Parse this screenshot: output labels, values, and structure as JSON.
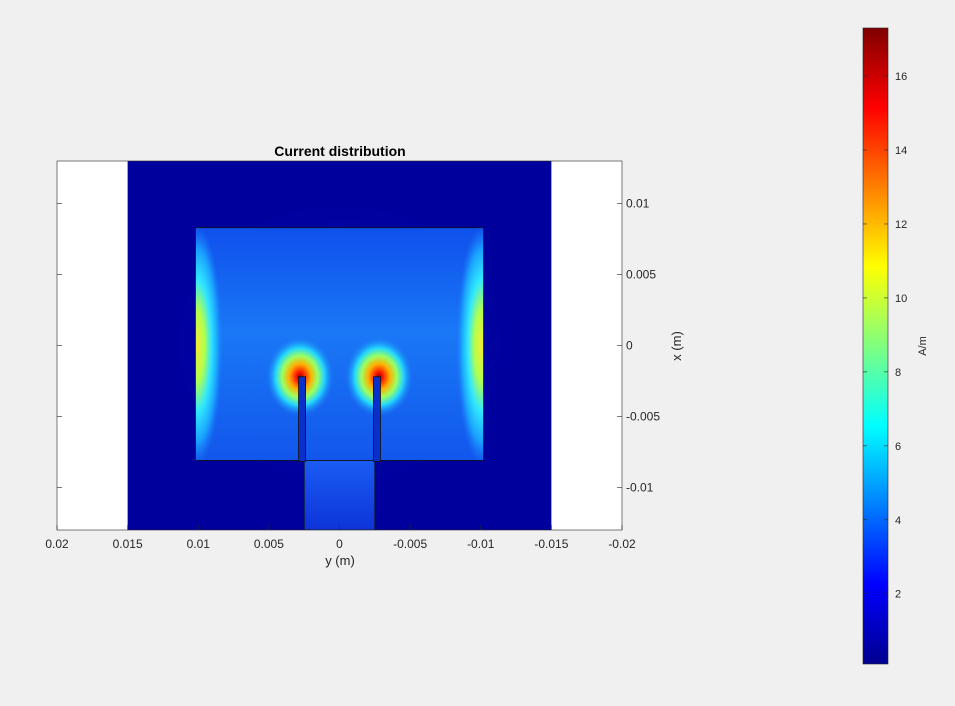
{
  "chart_data": {
    "type": "heatmap",
    "title": "Current distribution",
    "xlabel": "y (m)",
    "ylabel": "x (m)",
    "xlim": [
      0.02,
      -0.02
    ],
    "ylim": [
      -0.013,
      0.013
    ],
    "x_axis_reversed": true,
    "y_axis_location": "right",
    "x_ticks": [
      0.02,
      0.015,
      0.01,
      0.005,
      0,
      -0.005,
      -0.01,
      -0.015,
      -0.02
    ],
    "x_tick_labels": [
      "0.02",
      "0.015",
      "0.01",
      "0.005",
      "0",
      "-0.005",
      "-0.01",
      "-0.015",
      "-0.02"
    ],
    "y_ticks": [
      0.01,
      0.005,
      0,
      -0.005,
      -0.01
    ],
    "y_tick_labels": [
      "0.01",
      "0.005",
      "0",
      "-0.005",
      "-0.01"
    ],
    "colormap": "jet",
    "colorbar": {
      "label": "A/m",
      "range": [
        0.1,
        17.3
      ],
      "ticks": [
        2,
        4,
        6,
        8,
        10,
        12,
        14,
        16
      ],
      "tick_labels": [
        "2",
        "4",
        "6",
        "8",
        "10",
        "12",
        "14",
        "16"
      ]
    },
    "ground_plane": {
      "y": [
        -0.015,
        0.015
      ],
      "x": [
        -0.013,
        0.013
      ]
    },
    "patch": {
      "y": [
        -0.0102,
        0.0102
      ],
      "x": [
        -0.0081,
        0.0083
      ]
    },
    "inset_slots": [
      {
        "y": [
          0.0024,
          0.0029
        ],
        "x": [
          -0.0081,
          -0.0022
        ]
      },
      {
        "y": [
          -0.0029,
          -0.0024
        ],
        "x": [
          -0.0081,
          -0.0022
        ]
      }
    ],
    "feed_line": {
      "y": [
        -0.0025,
        0.0025
      ],
      "x": [
        -0.013,
        -0.0081
      ]
    },
    "hotspots": [
      {
        "y": 0.0028,
        "x": -0.0022,
        "value": 17.3
      },
      {
        "y": -0.0028,
        "x": -0.0022,
        "value": 17.3
      },
      {
        "y": 0.0101,
        "x": 0.0,
        "value": 11.0
      },
      {
        "y": -0.0101,
        "x": 0.0,
        "value": 11.0
      }
    ],
    "background_value": 0.6,
    "grid": false,
    "grid_label": "off",
    "colors": {
      "background": "#f0f0f0",
      "outside": "#ffffff",
      "axes_text": "#262626"
    }
  }
}
